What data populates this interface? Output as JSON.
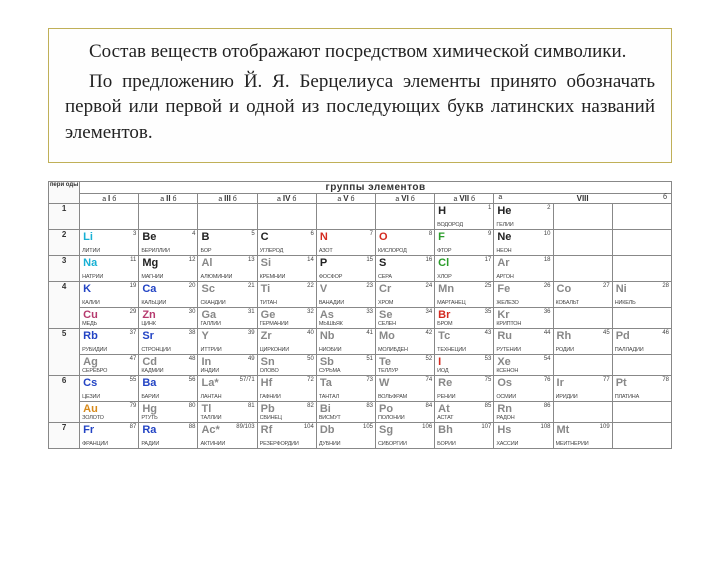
{
  "textBox": {
    "p1": "Состав веществ отображают посредством химической символики.",
    "p2": "По предложению Й. Я. Берцелиуса элементы принято обозначать первой или первой и одной из последующих букв латинских названий элементов."
  },
  "pt": {
    "periodLabel": "пери оды",
    "groupsTitle": "группы элементов",
    "groups": [
      {
        "roman": "I",
        "a": "а",
        "b": "б"
      },
      {
        "roman": "II",
        "a": "а",
        "b": "б"
      },
      {
        "roman": "III",
        "a": "а",
        "b": "б"
      },
      {
        "roman": "IV",
        "a": "а",
        "b": "б"
      },
      {
        "roman": "V",
        "a": "а",
        "b": "б"
      },
      {
        "roman": "VI",
        "a": "а",
        "b": "б"
      },
      {
        "roman": "VII",
        "a": "а",
        "b": "б"
      },
      {
        "roman": "VIII",
        "a": "а",
        "b": "б"
      }
    ],
    "rows": [
      {
        "label": "1",
        "cells": [
          null,
          null,
          null,
          null,
          null,
          null,
          {
            "n": "1",
            "s": "H",
            "name": "ВОДОРОД",
            "col": "c-black"
          },
          {
            "n": "2",
            "s": "He",
            "name": "ГЕЛИЙ",
            "col": "c-black"
          },
          null,
          null
        ]
      },
      {
        "label": "2",
        "cells": [
          {
            "n": "3",
            "s": "Li",
            "name": "ЛИТИЙ",
            "col": "c-cyan"
          },
          {
            "n": "4",
            "s": "Be",
            "name": "БЕРИЛЛИЙ",
            "col": "c-black"
          },
          {
            "n": "5",
            "s": "B",
            "name": "БОР",
            "col": "c-black"
          },
          {
            "n": "6",
            "s": "C",
            "name": "УГЛЕРОД",
            "col": "c-black"
          },
          {
            "n": "7",
            "s": "N",
            "name": "АЗОТ",
            "col": "c-red"
          },
          {
            "n": "8",
            "s": "O",
            "name": "КИСЛОРОД",
            "col": "c-red"
          },
          {
            "n": "9",
            "s": "F",
            "name": "ФТОР",
            "col": "c-green"
          },
          {
            "n": "10",
            "s": "Ne",
            "name": "НЕОН",
            "col": "c-black"
          },
          null,
          null
        ]
      },
      {
        "label": "3",
        "cells": [
          {
            "n": "11",
            "s": "Na",
            "name": "НАТРИЙ",
            "col": "c-cyan"
          },
          {
            "n": "12",
            "s": "Mg",
            "name": "МАГНИЙ",
            "col": "c-black"
          },
          {
            "n": "13",
            "s": "Al",
            "name": "АЛЮМИНИЙ",
            "col": "c-gray"
          },
          {
            "n": "14",
            "s": "Si",
            "name": "КРЕМНИЙ",
            "col": "c-gray"
          },
          {
            "n": "15",
            "s": "P",
            "name": "ФОСФОР",
            "col": "c-black"
          },
          {
            "n": "16",
            "s": "S",
            "name": "СЕРА",
            "col": "c-black"
          },
          {
            "n": "17",
            "s": "Cl",
            "name": "ХЛОР",
            "col": "c-green"
          },
          {
            "n": "18",
            "s": "Ar",
            "name": "АРГОН",
            "col": "c-gray"
          },
          null,
          null
        ]
      },
      {
        "label": "4",
        "split": true,
        "rowA": [
          {
            "n": "19",
            "s": "K",
            "name": "КАЛИЙ",
            "col": "c-blue"
          },
          {
            "n": "20",
            "s": "Ca",
            "name": "КАЛЬЦИЙ",
            "col": "c-blue"
          },
          {
            "n": "21",
            "s": "Sc",
            "name": "СКАНДИЙ",
            "col": "c-gray"
          },
          {
            "n": "22",
            "s": "Ti",
            "name": "ТИТАН",
            "col": "c-gray"
          },
          {
            "n": "23",
            "s": "V",
            "name": "ВАНАДИЙ",
            "col": "c-gray"
          },
          {
            "n": "24",
            "s": "Cr",
            "name": "ХРОМ",
            "col": "c-gray"
          },
          {
            "n": "25",
            "s": "Mn",
            "name": "МАРГАНЕЦ",
            "col": "c-gray"
          },
          {
            "n": "26",
            "s": "Fe",
            "name": "ЖЕЛЕЗО",
            "col": "c-gray"
          },
          {
            "n": "27",
            "s": "Co",
            "name": "КОБАЛЬТ",
            "col": "c-gray"
          },
          {
            "n": "28",
            "s": "Ni",
            "name": "НИКЕЛЬ",
            "col": "c-gray"
          }
        ],
        "rowB": [
          {
            "n": "29",
            "s": "Cu",
            "name": "МЕДЬ",
            "col": "c-mag"
          },
          {
            "n": "30",
            "s": "Zn",
            "name": "ЦИНК",
            "col": "c-mag"
          },
          {
            "n": "31",
            "s": "Ga",
            "name": "ГАЛЛИЙ",
            "col": "c-gray"
          },
          {
            "n": "32",
            "s": "Ge",
            "name": "ГЕРМАНИЙ",
            "col": "c-gray"
          },
          {
            "n": "33",
            "s": "As",
            "name": "МЫШЬЯК",
            "col": "c-gray"
          },
          {
            "n": "34",
            "s": "Se",
            "name": "СЕЛЕН",
            "col": "c-gray"
          },
          {
            "n": "35",
            "s": "Br",
            "name": "БРОМ",
            "col": "c-red"
          },
          {
            "n": "36",
            "s": "Kr",
            "name": "КРИПТОН",
            "col": "c-gray"
          },
          null,
          null
        ]
      },
      {
        "label": "5",
        "split": true,
        "rowA": [
          {
            "n": "37",
            "s": "Rb",
            "name": "РУБИДИЙ",
            "col": "c-blue"
          },
          {
            "n": "38",
            "s": "Sr",
            "name": "СТРОНЦИЙ",
            "col": "c-blue"
          },
          {
            "n": "39",
            "s": "Y",
            "name": "ИТТРИЙ",
            "col": "c-gray"
          },
          {
            "n": "40",
            "s": "Zr",
            "name": "ЦИРКОНИЙ",
            "col": "c-gray"
          },
          {
            "n": "41",
            "s": "Nb",
            "name": "НИОБИЙ",
            "col": "c-gray"
          },
          {
            "n": "42",
            "s": "Mo",
            "name": "МОЛИБДЕН",
            "col": "c-gray"
          },
          {
            "n": "43",
            "s": "Tc",
            "name": "ТЕХНЕЦИЙ",
            "col": "c-gray"
          },
          {
            "n": "44",
            "s": "Ru",
            "name": "РУТЕНИЙ",
            "col": "c-gray"
          },
          {
            "n": "45",
            "s": "Rh",
            "name": "РОДИЙ",
            "col": "c-gray"
          },
          {
            "n": "46",
            "s": "Pd",
            "name": "ПАЛЛАДИЙ",
            "col": "c-gray"
          }
        ],
        "rowB": [
          {
            "n": "47",
            "s": "Ag",
            "name": "СЕРЕБРО",
            "col": "c-gray"
          },
          {
            "n": "48",
            "s": "Cd",
            "name": "КАДМИЙ",
            "col": "c-gray"
          },
          {
            "n": "49",
            "s": "In",
            "name": "ИНДИЙ",
            "col": "c-gray"
          },
          {
            "n": "50",
            "s": "Sn",
            "name": "ОЛОВО",
            "col": "c-gray"
          },
          {
            "n": "51",
            "s": "Sb",
            "name": "СУРЬМА",
            "col": "c-gray"
          },
          {
            "n": "52",
            "s": "Te",
            "name": "ТЕЛЛУР",
            "col": "c-gray"
          },
          {
            "n": "53",
            "s": "I",
            "name": "ИОД",
            "col": "c-red"
          },
          {
            "n": "54",
            "s": "Xe",
            "name": "КСЕНОН",
            "col": "c-gray"
          },
          null,
          null
        ]
      },
      {
        "label": "6",
        "split": true,
        "rowA": [
          {
            "n": "55",
            "s": "Cs",
            "name": "ЦЕЗИЙ",
            "col": "c-blue"
          },
          {
            "n": "56",
            "s": "Ba",
            "name": "БАРИЙ",
            "col": "c-blue"
          },
          {
            "n": "57/71",
            "s": "La*",
            "name": "ЛАНТАН",
            "col": "c-gray"
          },
          {
            "n": "72",
            "s": "Hf",
            "name": "ГАФНИЙ",
            "col": "c-gray"
          },
          {
            "n": "73",
            "s": "Ta",
            "name": "ТАНТАЛ",
            "col": "c-gray"
          },
          {
            "n": "74",
            "s": "W",
            "name": "ВОЛЬФРАМ",
            "col": "c-gray"
          },
          {
            "n": "75",
            "s": "Re",
            "name": "РЕНИЙ",
            "col": "c-gray"
          },
          {
            "n": "76",
            "s": "Os",
            "name": "ОСМИЙ",
            "col": "c-gray"
          },
          {
            "n": "77",
            "s": "Ir",
            "name": "ИРИДИЙ",
            "col": "c-gray"
          },
          {
            "n": "78",
            "s": "Pt",
            "name": "ПЛАТИНА",
            "col": "c-gray"
          }
        ],
        "rowB": [
          {
            "n": "79",
            "s": "Au",
            "name": "ЗОЛОТО",
            "col": "c-orange"
          },
          {
            "n": "80",
            "s": "Hg",
            "name": "РТУТЬ",
            "col": "c-gray"
          },
          {
            "n": "81",
            "s": "Tl",
            "name": "ТАЛЛИЙ",
            "col": "c-gray"
          },
          {
            "n": "82",
            "s": "Pb",
            "name": "СВИНЕЦ",
            "col": "c-gray"
          },
          {
            "n": "83",
            "s": "Bi",
            "name": "ВИСМУТ",
            "col": "c-gray"
          },
          {
            "n": "84",
            "s": "Po",
            "name": "ПОЛОНИЙ",
            "col": "c-gray"
          },
          {
            "n": "85",
            "s": "At",
            "name": "АСТАТ",
            "col": "c-gray"
          },
          {
            "n": "86",
            "s": "Rn",
            "name": "РАДОН",
            "col": "c-gray"
          },
          null,
          null
        ]
      },
      {
        "label": "7",
        "cells": [
          {
            "n": "87",
            "s": "Fr",
            "name": "ФРАНЦИЙ",
            "col": "c-blue"
          },
          {
            "n": "88",
            "s": "Ra",
            "name": "РАДИЙ",
            "col": "c-blue"
          },
          {
            "n": "89/103",
            "s": "Ac*",
            "name": "АКТИНИЙ",
            "col": "c-gray"
          },
          {
            "n": "104",
            "s": "Rf",
            "name": "РЕЗЕРФОРДИЙ",
            "col": "c-gray"
          },
          {
            "n": "105",
            "s": "Db",
            "name": "ДУБНИЙ",
            "col": "c-gray"
          },
          {
            "n": "106",
            "s": "Sg",
            "name": "СИБОРГИЙ",
            "col": "c-gray"
          },
          {
            "n": "107",
            "s": "Bh",
            "name": "БОРИЙ",
            "col": "c-gray"
          },
          {
            "n": "108",
            "s": "Hs",
            "name": "ХАССИЙ",
            "col": "c-gray"
          },
          {
            "n": "109",
            "s": "Mt",
            "name": "МЕЙТНЕРИЙ",
            "col": "c-gray"
          },
          null
        ]
      }
    ]
  }
}
